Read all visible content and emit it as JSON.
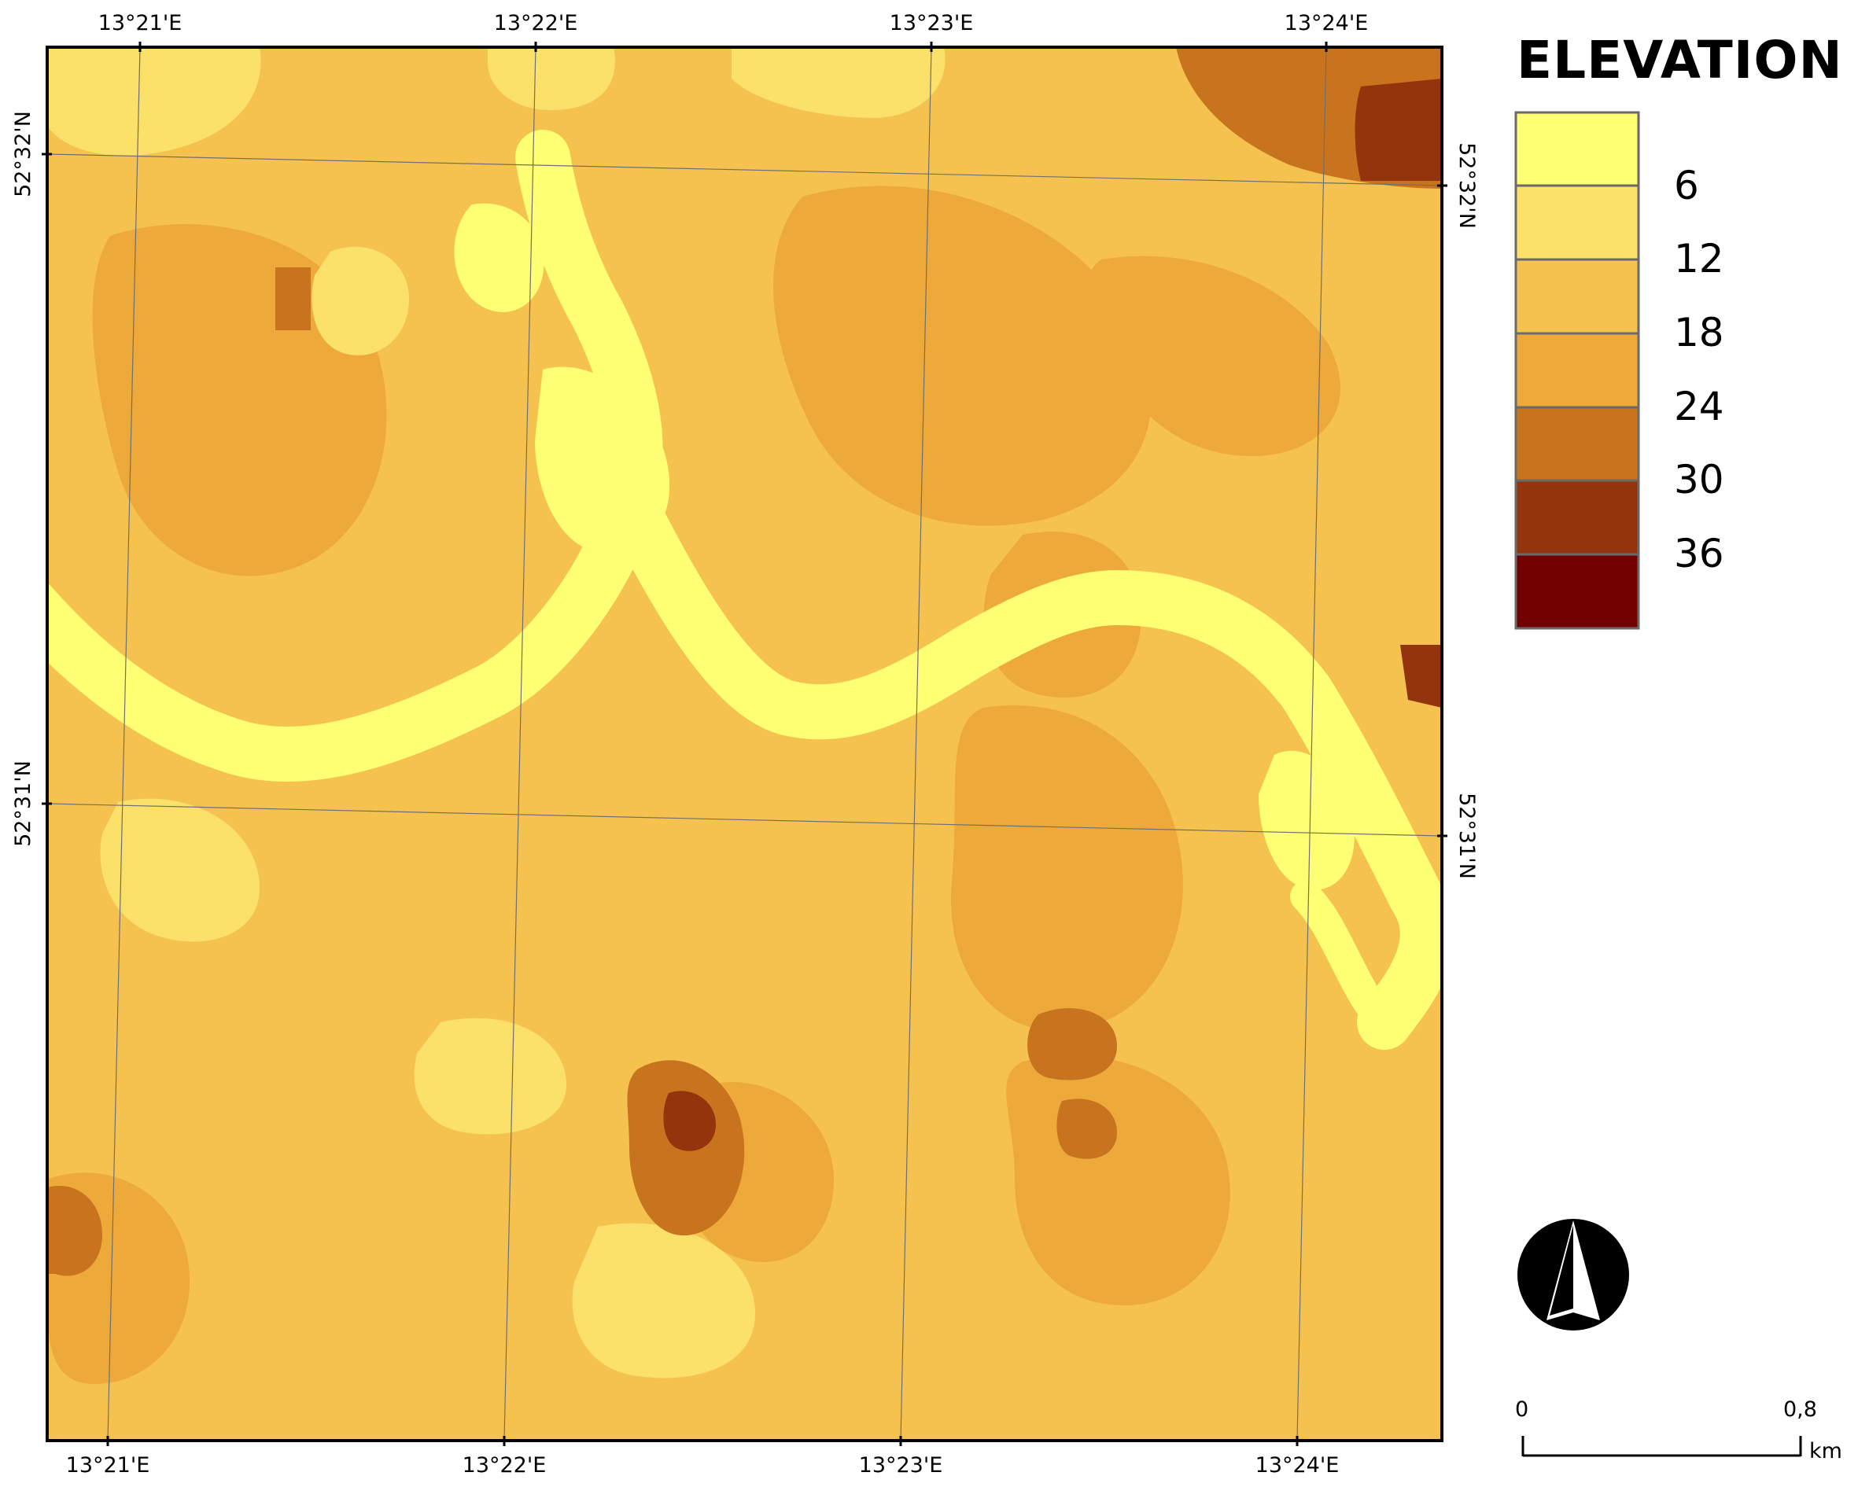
{
  "map": {
    "top_lon_labels": [
      "13°21'E",
      "13°22'E",
      "13°23'E",
      "13°24'E"
    ],
    "bottom_lon_labels": [
      "13°21'E",
      "13°22'E",
      "13°23'E",
      "13°24'E"
    ],
    "left_lat_labels": [
      "52°32'N",
      "52°31'N"
    ],
    "right_lat_labels": [
      "52°32'N",
      "52°31'N"
    ]
  },
  "legend": {
    "title": "ELEVATION",
    "classes": [
      {
        "color": "#ffff73",
        "label": "6"
      },
      {
        "color": "#fbe06a",
        "label": "12"
      },
      {
        "color": "#f5c250",
        "label": "18"
      },
      {
        "color": "#eda93a",
        "label": "24"
      },
      {
        "color": "#c8741f",
        "label": "30"
      },
      {
        "color": "#93340c",
        "label": "36"
      },
      {
        "color": "#730000",
        "label": ""
      }
    ]
  },
  "north_arrow": {
    "icon": "north-arrow-icon"
  },
  "scale_bar": {
    "start_label": "0",
    "end_label": "0,8",
    "unit": "km"
  }
}
